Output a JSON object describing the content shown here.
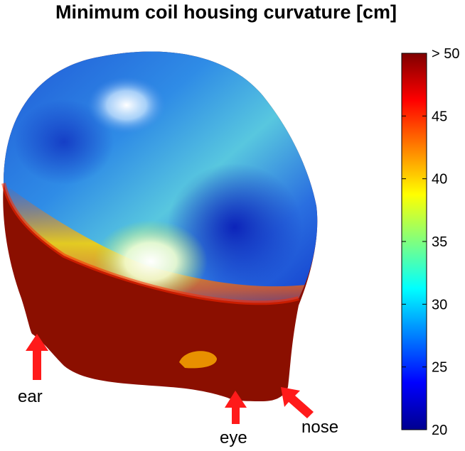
{
  "figure": {
    "title": "Minimum coil housing curvature [cm]",
    "colorbar": {
      "ticks": [
        "20",
        "25",
        "30",
        "35",
        "40",
        "45",
        "> 50"
      ],
      "range": [
        20,
        50
      ],
      "colormap": "jet",
      "colors": [
        "#00008f",
        "#0000ff",
        "#00ffff",
        "#ffff00",
        "#ff0000",
        "#7f0000"
      ]
    },
    "annotations": {
      "ear": "ear",
      "eye": "eye",
      "nose": "nose"
    },
    "arrow_color": "#ff1a1a",
    "rim_color": "#8b0f00"
  }
}
